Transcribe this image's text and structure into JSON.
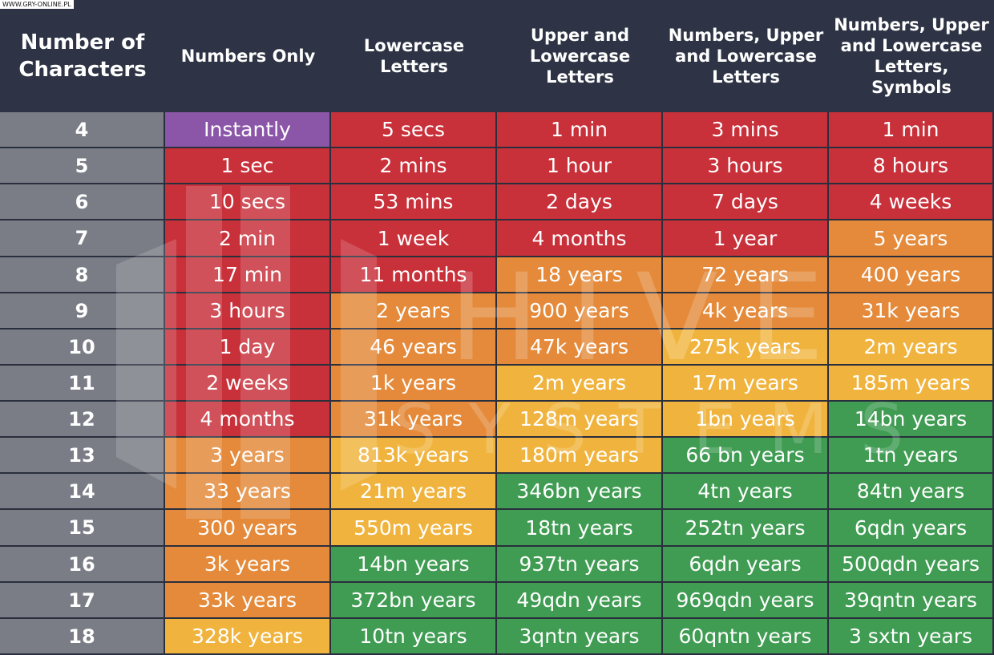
{
  "source_tag": "WWW.GRY-ONLINE.PL",
  "watermark": {
    "line1": "HIVE",
    "line2": "SYSTEMS"
  },
  "colors": {
    "header_bg": "#2e3445",
    "instant": "#8b56a8",
    "red": "#c8303a",
    "orange": "#e48a3a",
    "yellow": "#f0b43e",
    "green": "#3f9c52",
    "row_label": "#7a7d86"
  },
  "chart_data": {
    "type": "table",
    "columns": [
      "Number of\nCharacters",
      "Numbers Only",
      "Lowercase\nLetters",
      "Upper and\nLowercase\nLetters",
      "Numbers, Upper\nand Lowercase\nLetters",
      "Numbers, Upper\nand Lowercase\nLetters, Symbols"
    ],
    "rows": [
      {
        "n": "4",
        "cells": [
          [
            "Instantly",
            "instant"
          ],
          [
            "5 secs",
            "red"
          ],
          [
            "1 min",
            "red"
          ],
          [
            "3 mins",
            "red"
          ],
          [
            "1 min",
            "red"
          ]
        ]
      },
      {
        "n": "5",
        "cells": [
          [
            "1 sec",
            "red"
          ],
          [
            "2 mins",
            "red"
          ],
          [
            "1 hour",
            "red"
          ],
          [
            "3 hours",
            "red"
          ],
          [
            "8 hours",
            "red"
          ]
        ]
      },
      {
        "n": "6",
        "cells": [
          [
            "10 secs",
            "red"
          ],
          [
            "53 mins",
            "red"
          ],
          [
            "2 days",
            "red"
          ],
          [
            "7 days",
            "red"
          ],
          [
            "4 weeks",
            "red"
          ]
        ]
      },
      {
        "n": "7",
        "cells": [
          [
            "2 min",
            "red"
          ],
          [
            "1 week",
            "red"
          ],
          [
            "4 months",
            "red"
          ],
          [
            "1 year",
            "red"
          ],
          [
            "5 years",
            "orange"
          ]
        ]
      },
      {
        "n": "8",
        "cells": [
          [
            "17 min",
            "red"
          ],
          [
            "11 months",
            "red"
          ],
          [
            "18 years",
            "orange"
          ],
          [
            "72 years",
            "orange"
          ],
          [
            "400 years",
            "orange"
          ]
        ]
      },
      {
        "n": "9",
        "cells": [
          [
            "3 hours",
            "red"
          ],
          [
            "2 years",
            "orange"
          ],
          [
            "900 years",
            "orange"
          ],
          [
            "4k years",
            "orange"
          ],
          [
            "31k years",
            "orange"
          ]
        ]
      },
      {
        "n": "10",
        "cells": [
          [
            "1 day",
            "red"
          ],
          [
            "46 years",
            "orange"
          ],
          [
            "47k years",
            "orange"
          ],
          [
            "275k years",
            "yellow"
          ],
          [
            "2m years",
            "yellow"
          ]
        ]
      },
      {
        "n": "11",
        "cells": [
          [
            "2 weeks",
            "red"
          ],
          [
            "1k years",
            "orange"
          ],
          [
            "2m years",
            "yellow"
          ],
          [
            "17m years",
            "yellow"
          ],
          [
            "185m years",
            "yellow"
          ]
        ]
      },
      {
        "n": "12",
        "cells": [
          [
            "4 months",
            "red"
          ],
          [
            "31k years",
            "orange"
          ],
          [
            "128m years",
            "yellow"
          ],
          [
            "1bn years",
            "yellow"
          ],
          [
            "14bn years",
            "green"
          ]
        ]
      },
      {
        "n": "13",
        "cells": [
          [
            "3 years",
            "orange"
          ],
          [
            "813k years",
            "yellow"
          ],
          [
            "180m years",
            "yellow"
          ],
          [
            "66 bn years",
            "green"
          ],
          [
            "1tn years",
            "green"
          ]
        ]
      },
      {
        "n": "14",
        "cells": [
          [
            "33 years",
            "orange"
          ],
          [
            "21m years",
            "yellow"
          ],
          [
            "346bn years",
            "green"
          ],
          [
            "4tn years",
            "green"
          ],
          [
            "84tn years",
            "green"
          ]
        ]
      },
      {
        "n": "15",
        "cells": [
          [
            "300 years",
            "orange"
          ],
          [
            "550m years",
            "yellow"
          ],
          [
            "18tn years",
            "green"
          ],
          [
            "252tn years",
            "green"
          ],
          [
            "6qdn years",
            "green"
          ]
        ]
      },
      {
        "n": "16",
        "cells": [
          [
            "3k years",
            "orange"
          ],
          [
            "14bn years",
            "green"
          ],
          [
            "937tn years",
            "green"
          ],
          [
            "6qdn years",
            "green"
          ],
          [
            "500qdn years",
            "green"
          ]
        ]
      },
      {
        "n": "17",
        "cells": [
          [
            "33k years",
            "orange"
          ],
          [
            "372bn years",
            "green"
          ],
          [
            "49qdn years",
            "green"
          ],
          [
            "969qdn years",
            "green"
          ],
          [
            "39qntn years",
            "green"
          ]
        ]
      },
      {
        "n": "18",
        "cells": [
          [
            "328k years",
            "yellow"
          ],
          [
            "10tn years",
            "green"
          ],
          [
            "3qntn years",
            "green"
          ],
          [
            "60qntn years",
            "green"
          ],
          [
            "3 sxtn years",
            "green"
          ]
        ]
      }
    ]
  }
}
